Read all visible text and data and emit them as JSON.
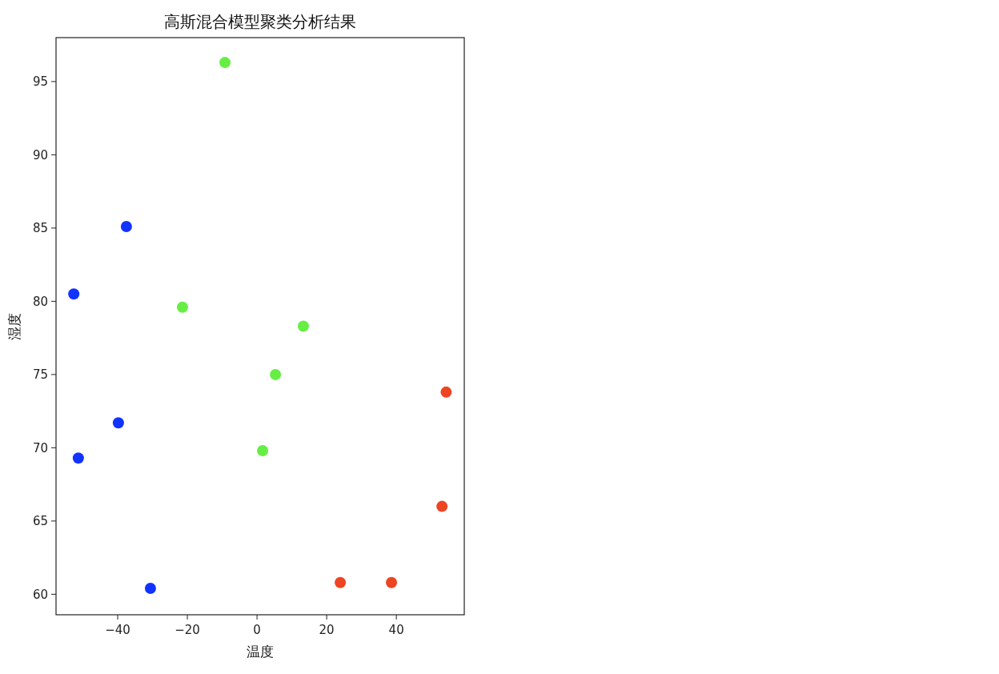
{
  "chart_data": {
    "type": "scatter",
    "title": "高斯混合模型聚类分析结果",
    "xlabel": "温度",
    "ylabel": "湿度",
    "marker": "circle",
    "xlim": [
      -57.7,
      59.5
    ],
    "xticks": [
      -40,
      -20,
      0,
      20,
      40
    ],
    "ylim": [
      58.6,
      98
    ],
    "yticks": [
      60,
      65,
      70,
      75,
      80,
      85,
      90,
      95
    ],
    "series": [
      {
        "color": "#1133ff",
        "x": [
          -37.5,
          -52.6,
          -39.8,
          -51.3,
          -30.6
        ],
        "values": [
          85.1,
          80.5,
          71.7,
          69.3,
          60.4
        ]
      },
      {
        "color": "#66ee44",
        "x": [
          -9.2,
          -21.4,
          13.3,
          5.3,
          1.6
        ],
        "values": [
          96.3,
          79.6,
          78.3,
          75.0,
          69.8
        ]
      },
      {
        "color": "#ee4422",
        "x": [
          54.3,
          53.1,
          23.9,
          38.6
        ],
        "values": [
          73.8,
          66.0,
          60.8,
          60.8
        ]
      }
    ]
  }
}
